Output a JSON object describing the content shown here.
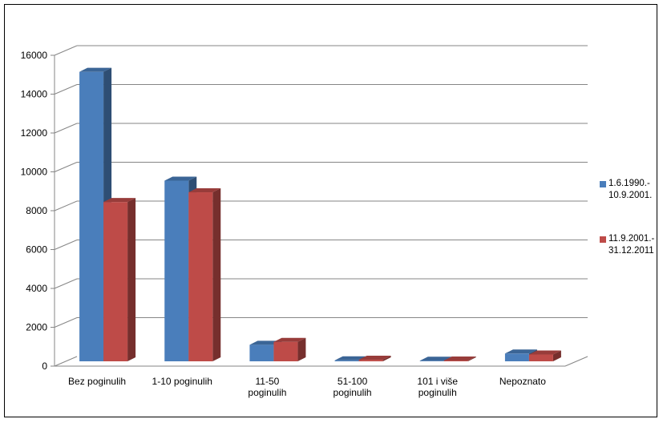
{
  "chart_data": {
    "type": "bar",
    "title": "",
    "xlabel": "",
    "ylabel": "",
    "ylim": [
      0,
      16000
    ],
    "yticks": [
      0,
      2000,
      4000,
      6000,
      8000,
      10000,
      12000,
      14000,
      16000
    ],
    "categories": [
      "Bez poginulih",
      "1-10 poginulih",
      "11-50\npoginulih",
      "51-100\npoginulih",
      "101 i više\npoginulih",
      "Nepoznato"
    ],
    "series": [
      {
        "name": "1.6.1990.-\n10.9.2001.",
        "color": "#4a7ebb",
        "values": [
          14900,
          9300,
          850,
          50,
          30,
          400
        ]
      },
      {
        "name": "11.9.2001.-\n31.12.2011",
        "color": "#be4b48",
        "values": [
          8200,
          8700,
          1000,
          80,
          40,
          350
        ]
      }
    ],
    "grid": true,
    "legend_position": "right",
    "style": "3d-clustered-column"
  }
}
